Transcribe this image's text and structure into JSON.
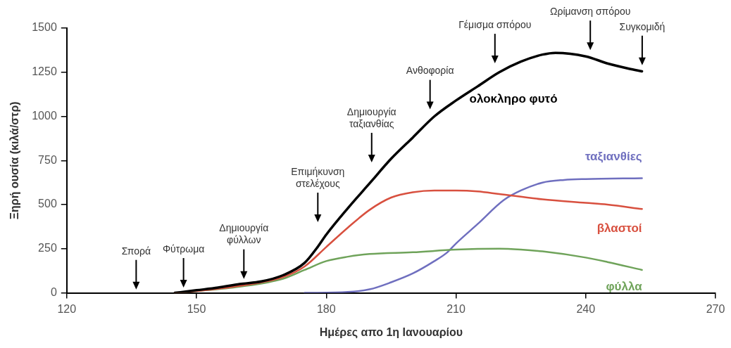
{
  "chart_data": {
    "type": "line",
    "xlabel": "Ημέρες απο 1η Ιανουαρίου",
    "ylabel": "Ξηρή ουσία (κιλά/στρ)",
    "xlim": [
      120,
      270
    ],
    "xticks": [
      120,
      150,
      180,
      210,
      240,
      270
    ],
    "ylim": [
      0,
      1500
    ],
    "yticks": [
      0,
      250,
      500,
      750,
      1000,
      1250,
      1500
    ],
    "grid": false,
    "legend": false,
    "marker": "none",
    "line_style": "solid",
    "series": [
      {
        "name": "ολοκληρο φυτό",
        "color": "#000000",
        "x": [
          145,
          150,
          155,
          160,
          165,
          170,
          175,
          178,
          180,
          185,
          190,
          195,
          200,
          205,
          210,
          215,
          220,
          225,
          230,
          233,
          240,
          245,
          250,
          253
        ],
        "values": [
          0,
          15,
          30,
          50,
          65,
          100,
          170,
          260,
          330,
          480,
          620,
          760,
          880,
          1000,
          1090,
          1170,
          1250,
          1310,
          1350,
          1360,
          1340,
          1300,
          1270,
          1255
        ]
      },
      {
        "name": "βλαστοί",
        "color": "#d8503f",
        "x": [
          145,
          150,
          160,
          170,
          175,
          180,
          185,
          190,
          195,
          200,
          205,
          210,
          215,
          220,
          230,
          240,
          245,
          253
        ],
        "values": [
          0,
          10,
          40,
          90,
          150,
          260,
          370,
          470,
          540,
          570,
          580,
          580,
          575,
          560,
          530,
          510,
          500,
          475
        ]
      },
      {
        "name": "φύλλα",
        "color": "#6fa35a",
        "x": [
          145,
          150,
          160,
          170,
          175,
          180,
          185,
          190,
          200,
          210,
          220,
          225,
          230,
          240,
          245,
          253
        ],
        "values": [
          0,
          10,
          35,
          80,
          130,
          180,
          205,
          220,
          230,
          245,
          250,
          245,
          235,
          200,
          175,
          130
        ]
      },
      {
        "name": "ταξιανθίες",
        "color": "#6f6fbf",
        "x": [
          175,
          185,
          190,
          195,
          200,
          205,
          208,
          210,
          215,
          221,
          225,
          230,
          235,
          240,
          253
        ],
        "values": [
          0,
          5,
          20,
          60,
          110,
          180,
          230,
          280,
          390,
          525,
          580,
          625,
          640,
          645,
          650
        ]
      }
    ],
    "annotations": [
      "Σπορά",
      "Φύτρωμα",
      "Δημιουργία\nφύλλων",
      "Επιμήκυνση\nστελέχους",
      "Δημιουργία\nταξιανθίας",
      "Ανθοφορία",
      "Γέμισμα σπόρου",
      "Ωρίμανση σπόρου",
      "Συγκομιδή"
    ]
  }
}
